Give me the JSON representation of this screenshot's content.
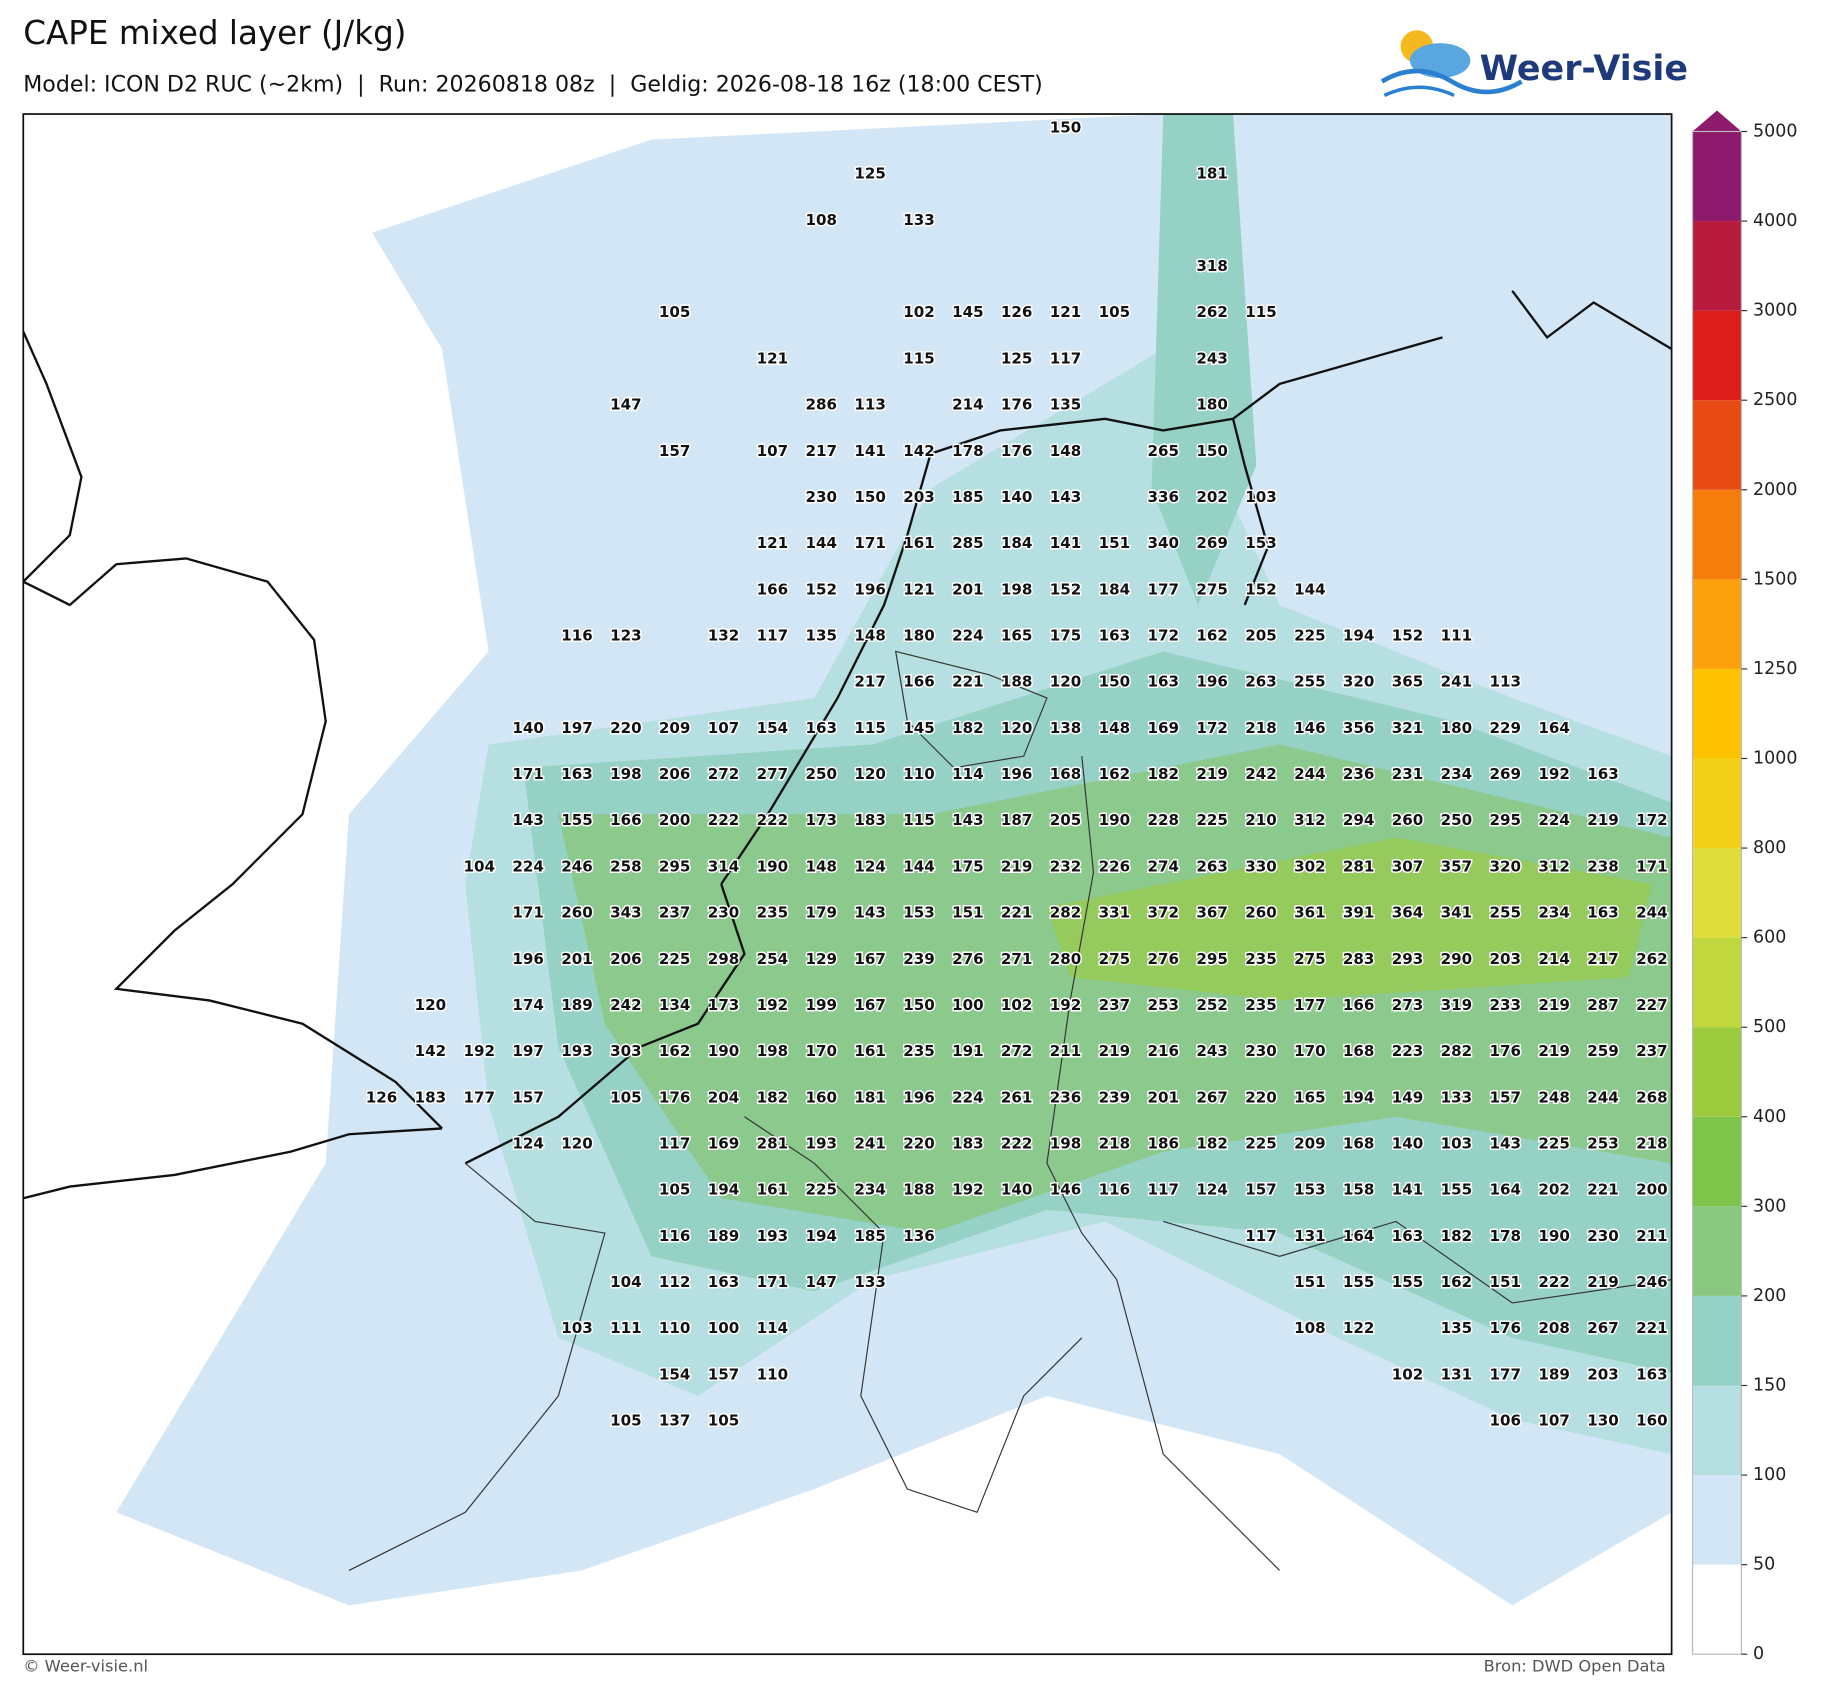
{
  "header": {
    "title": "CAPE mixed layer (J/kg)",
    "subtitle": "Model: ICON D2 RUC (~2km)  |  Run: 20260818 08z  |  Geldig: 2026-08-18 16z (18:00 CEST)",
    "logo": "Weer-Visie"
  },
  "footer": {
    "left": "© Weer-visie.nl",
    "right": "Bron: DWD Open Data"
  },
  "grid_labels": {
    "rows": [
      [
        null,
        null,
        null,
        null,
        null,
        null,
        null,
        null,
        null,
        null,
        null,
        null,
        null,
        null,
        150,
        null,
        null,
        null,
        null,
        null,
        null,
        null,
        null,
        null,
        null,
        null,
        null
      ],
      [
        null,
        null,
        null,
        null,
        null,
        null,
        null,
        null,
        null,
        null,
        125,
        null,
        null,
        null,
        null,
        null,
        null,
        181,
        null,
        null,
        null,
        null,
        null,
        null,
        null,
        null,
        null
      ],
      [
        null,
        null,
        null,
        null,
        null,
        null,
        null,
        null,
        null,
        108,
        null,
        133,
        null,
        null,
        null,
        null,
        null,
        null,
        null,
        null,
        null,
        null,
        null,
        null,
        null,
        null,
        null
      ],
      [
        null,
        null,
        null,
        null,
        null,
        null,
        null,
        null,
        null,
        null,
        null,
        null,
        null,
        null,
        null,
        null,
        null,
        318,
        null,
        null,
        null,
        null,
        null,
        null,
        null,
        null,
        null
      ],
      [
        null,
        null,
        null,
        null,
        null,
        null,
        105,
        null,
        null,
        null,
        null,
        102,
        145,
        126,
        121,
        105,
        null,
        262,
        115,
        null,
        null,
        null,
        null,
        null,
        null,
        null,
        null
      ],
      [
        null,
        null,
        null,
        null,
        null,
        null,
        null,
        null,
        121,
        null,
        null,
        115,
        null,
        125,
        117,
        null,
        null,
        243,
        null,
        null,
        null,
        null,
        null,
        null,
        null,
        null,
        null
      ],
      [
        null,
        null,
        null,
        null,
        null,
        147,
        null,
        null,
        null,
        286,
        113,
        null,
        214,
        176,
        135,
        null,
        null,
        180,
        null,
        null,
        null,
        null,
        null,
        null,
        null,
        null,
        null
      ],
      [
        null,
        null,
        null,
        null,
        null,
        null,
        157,
        null,
        107,
        217,
        141,
        142,
        178,
        176,
        148,
        null,
        265,
        150,
        null,
        null,
        null,
        null,
        null,
        null,
        null,
        null,
        null
      ],
      [
        null,
        null,
        null,
        null,
        null,
        null,
        null,
        null,
        null,
        230,
        150,
        203,
        185,
        140,
        143,
        null,
        336,
        202,
        103,
        null,
        null,
        null,
        null,
        null,
        null,
        null,
        null
      ],
      [
        null,
        null,
        null,
        null,
        null,
        null,
        null,
        null,
        121,
        144,
        171,
        161,
        285,
        184,
        141,
        151,
        340,
        269,
        153,
        null,
        null,
        null,
        null,
        null,
        null,
        null,
        null
      ],
      [
        null,
        null,
        null,
        null,
        null,
        null,
        null,
        null,
        166,
        152,
        196,
        121,
        201,
        198,
        152,
        184,
        177,
        275,
        152,
        144,
        null,
        null,
        null,
        null,
        null,
        null,
        null
      ],
      [
        null,
        null,
        null,
        null,
        116,
        123,
        null,
        132,
        117,
        135,
        148,
        180,
        224,
        165,
        175,
        163,
        172,
        162,
        205,
        225,
        194,
        152,
        111,
        null,
        null,
        null,
        null
      ],
      [
        null,
        null,
        null,
        null,
        null,
        null,
        null,
        null,
        null,
        null,
        217,
        166,
        221,
        188,
        120,
        150,
        163,
        196,
        263,
        255,
        320,
        365,
        241,
        113,
        null,
        null,
        null
      ],
      [
        null,
        null,
        null,
        140,
        197,
        220,
        209,
        107,
        154,
        163,
        115,
        145,
        182,
        120,
        138,
        148,
        169,
        172,
        218,
        146,
        356,
        321,
        180,
        229,
        164,
        null,
        null
      ],
      [
        null,
        null,
        null,
        171,
        163,
        198,
        206,
        272,
        277,
        250,
        120,
        110,
        114,
        196,
        168,
        162,
        182,
        219,
        242,
        244,
        236,
        231,
        234,
        269,
        192,
        163,
        null
      ],
      [
        null,
        null,
        null,
        143,
        155,
        166,
        200,
        222,
        222,
        173,
        183,
        115,
        143,
        187,
        205,
        190,
        228,
        225,
        210,
        312,
        294,
        260,
        250,
        295,
        224,
        219,
        172
      ],
      [
        null,
        null,
        104,
        224,
        246,
        258,
        295,
        314,
        190,
        148,
        124,
        144,
        175,
        219,
        232,
        226,
        274,
        263,
        330,
        302,
        281,
        307,
        357,
        320,
        312,
        238,
        171
      ],
      [
        null,
        null,
        null,
        171,
        260,
        343,
        237,
        230,
        235,
        179,
        143,
        153,
        151,
        221,
        282,
        331,
        372,
        367,
        260,
        361,
        391,
        364,
        341,
        255,
        234,
        163,
        244
      ],
      [
        null,
        null,
        null,
        196,
        201,
        206,
        225,
        298,
        254,
        129,
        167,
        239,
        276,
        271,
        280,
        275,
        276,
        295,
        235,
        275,
        283,
        293,
        290,
        203,
        214,
        217,
        262
      ],
      [
        null,
        120,
        null,
        174,
        189,
        242,
        134,
        173,
        192,
        199,
        167,
        150,
        100,
        102,
        192,
        237,
        253,
        252,
        235,
        177,
        166,
        273,
        319,
        233,
        219,
        287,
        227
      ],
      [
        null,
        142,
        192,
        197,
        193,
        303,
        162,
        190,
        198,
        170,
        161,
        235,
        191,
        272,
        211,
        219,
        216,
        243,
        230,
        170,
        168,
        223,
        282,
        176,
        219,
        259,
        237
      ],
      [
        126,
        183,
        177,
        157,
        null,
        105,
        176,
        204,
        182,
        160,
        181,
        196,
        224,
        261,
        236,
        239,
        201,
        267,
        220,
        165,
        194,
        149,
        133,
        157,
        248,
        244,
        268
      ],
      [
        null,
        null,
        null,
        124,
        120,
        null,
        117,
        169,
        281,
        193,
        241,
        220,
        183,
        222,
        198,
        218,
        186,
        182,
        225,
        209,
        168,
        140,
        103,
        143,
        225,
        253,
        218
      ],
      [
        null,
        null,
        null,
        null,
        null,
        null,
        105,
        194,
        161,
        225,
        234,
        188,
        192,
        140,
        146,
        116,
        117,
        124,
        157,
        153,
        158,
        141,
        155,
        164,
        202,
        221,
        200
      ],
      [
        null,
        null,
        null,
        null,
        null,
        null,
        116,
        189,
        193,
        194,
        185,
        136,
        null,
        null,
        null,
        null,
        null,
        null,
        117,
        131,
        164,
        163,
        182,
        178,
        190,
        230,
        211
      ],
      [
        null,
        null,
        null,
        null,
        null,
        104,
        112,
        163,
        171,
        147,
        133,
        null,
        null,
        null,
        null,
        null,
        null,
        null,
        null,
        151,
        155,
        155,
        162,
        151,
        222,
        219,
        246
      ],
      [
        null,
        null,
        null,
        null,
        103,
        111,
        110,
        100,
        114,
        null,
        null,
        null,
        null,
        null,
        null,
        null,
        null,
        null,
        null,
        108,
        122,
        null,
        135,
        176,
        208,
        267,
        221
      ],
      [
        null,
        null,
        null,
        null,
        null,
        null,
        154,
        157,
        110,
        null,
        null,
        null,
        null,
        null,
        null,
        null,
        null,
        null,
        null,
        null,
        null,
        102,
        131,
        177,
        189,
        203,
        163
      ],
      [
        null,
        null,
        null,
        null,
        null,
        105,
        137,
        105,
        null,
        null,
        null,
        null,
        null,
        null,
        null,
        null,
        null,
        null,
        null,
        null,
        null,
        null,
        null,
        106,
        107,
        130,
        160
      ]
    ]
  },
  "colorbar": {
    "bounds": [
      0,
      50,
      100,
      150,
      200,
      300,
      400,
      500,
      600,
      800,
      1000,
      1250,
      1500,
      2000,
      2500,
      3000,
      4000,
      5000
    ],
    "colors": [
      "#ffffff",
      "#d3e6f5",
      "#b5dfe0",
      "#95d1c4",
      "#8ac882",
      "#7ec34a",
      "#9ccb3d",
      "#c0d83e",
      "#dfdd3a",
      "#f3d11b",
      "#fdc300",
      "#fca00b",
      "#f57d0b",
      "#e84a14",
      "#dd1f1b",
      "#b71c3e",
      "#8e1a6e"
    ],
    "extend_color": "#8e1a6e"
  }
}
